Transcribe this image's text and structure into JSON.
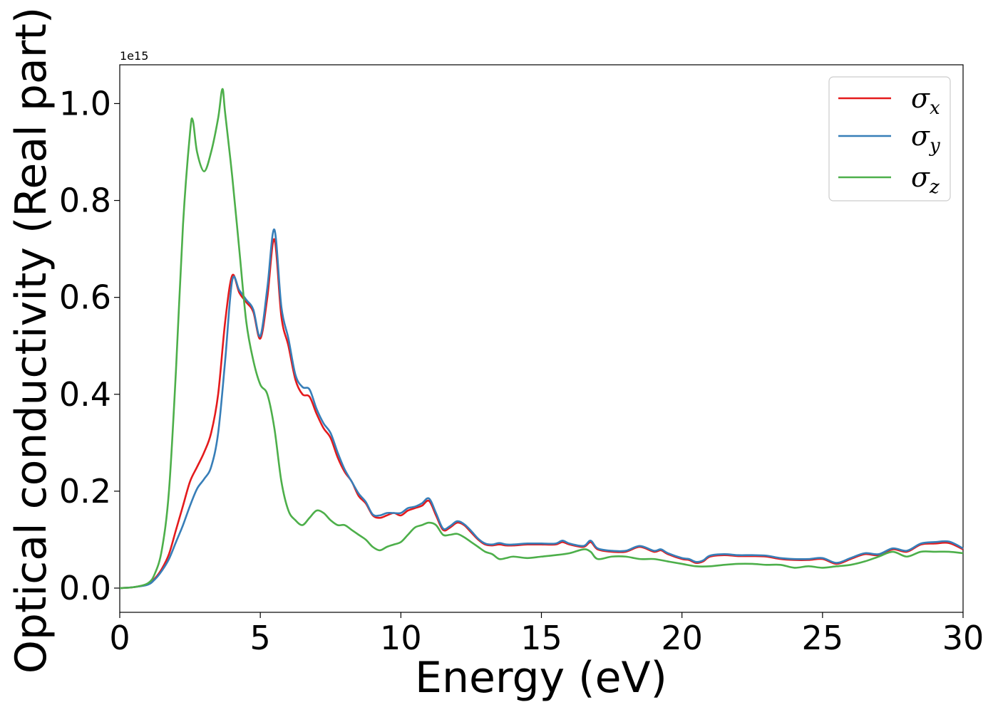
{
  "chart_data": {
    "type": "line",
    "title": "",
    "xlabel": "Energy (eV)",
    "ylabel": "Optical conductivity (Real part)",
    "y_offset_label": "1e15",
    "xlim": [
      0,
      30
    ],
    "ylim": [
      -0.05,
      1.08
    ],
    "xticks": [
      0,
      5,
      10,
      15,
      20,
      25,
      30
    ],
    "xtick_labels": [
      "0",
      "5",
      "10",
      "15",
      "20",
      "25",
      "30"
    ],
    "yticks": [
      0.0,
      0.2,
      0.4,
      0.6,
      0.8,
      1.0
    ],
    "ytick_labels": [
      "0.0",
      "0.2",
      "0.4",
      "0.6",
      "0.8",
      "1.0"
    ],
    "grid": false,
    "legend_position": "top-right",
    "series": [
      {
        "name": "σx",
        "legend_base": "σ",
        "legend_sub": "x",
        "color": "#e41a1c",
        "x": [
          0,
          0.5,
          1,
          1.25,
          1.5,
          1.75,
          2,
          2.25,
          2.5,
          2.75,
          3,
          3.25,
          3.5,
          3.75,
          4,
          4.25,
          4.5,
          4.75,
          5,
          5.25,
          5.5,
          5.75,
          6,
          6.25,
          6.5,
          6.75,
          7,
          7.25,
          7.5,
          7.75,
          8,
          8.25,
          8.5,
          8.75,
          9,
          9.25,
          9.5,
          9.75,
          10,
          10.25,
          10.5,
          10.75,
          11,
          11.25,
          11.5,
          11.75,
          12,
          12.25,
          12.5,
          12.75,
          13,
          13.25,
          13.5,
          13.75,
          14,
          14.5,
          15,
          15.5,
          15.75,
          16,
          16.5,
          16.75,
          17,
          17.5,
          18,
          18.5,
          19,
          19.25,
          19.5,
          20,
          20.25,
          20.5,
          20.75,
          21,
          21.5,
          22,
          22.5,
          23,
          23.5,
          24,
          24.5,
          25,
          25.5,
          26,
          26.5,
          27,
          27.5,
          28,
          28.5,
          29,
          29.5,
          30
        ],
        "y": [
          0,
          0.002,
          0.008,
          0.02,
          0.04,
          0.07,
          0.12,
          0.17,
          0.22,
          0.25,
          0.28,
          0.32,
          0.4,
          0.55,
          0.645,
          0.61,
          0.59,
          0.57,
          0.515,
          0.6,
          0.72,
          0.56,
          0.5,
          0.43,
          0.4,
          0.395,
          0.36,
          0.33,
          0.31,
          0.27,
          0.24,
          0.22,
          0.19,
          0.175,
          0.15,
          0.145,
          0.15,
          0.155,
          0.15,
          0.16,
          0.165,
          0.17,
          0.18,
          0.15,
          0.12,
          0.125,
          0.135,
          0.13,
          0.115,
          0.1,
          0.09,
          0.088,
          0.09,
          0.088,
          0.088,
          0.09,
          0.09,
          0.09,
          0.095,
          0.09,
          0.085,
          0.095,
          0.08,
          0.075,
          0.075,
          0.085,
          0.075,
          0.078,
          0.07,
          0.06,
          0.058,
          0.052,
          0.055,
          0.065,
          0.068,
          0.066,
          0.066,
          0.065,
          0.06,
          0.058,
          0.058,
          0.06,
          0.05,
          0.06,
          0.07,
          0.068,
          0.08,
          0.075,
          0.09,
          0.092,
          0.093,
          0.08
        ]
      },
      {
        "name": "σy",
        "legend_base": "σ",
        "legend_sub": "y",
        "color": "#377eb8",
        "x": [
          0,
          0.5,
          1,
          1.25,
          1.5,
          1.75,
          2,
          2.25,
          2.5,
          2.75,
          3,
          3.25,
          3.5,
          3.75,
          4,
          4.25,
          4.5,
          4.75,
          5,
          5.25,
          5.5,
          5.75,
          6,
          6.25,
          6.5,
          6.75,
          7,
          7.25,
          7.5,
          7.75,
          8,
          8.25,
          8.5,
          8.75,
          9,
          9.25,
          9.5,
          9.75,
          10,
          10.25,
          10.5,
          10.75,
          11,
          11.25,
          11.5,
          11.75,
          12,
          12.25,
          12.5,
          12.75,
          13,
          13.25,
          13.5,
          13.75,
          14,
          14.5,
          15,
          15.5,
          15.75,
          16,
          16.5,
          16.75,
          17,
          17.5,
          18,
          18.5,
          19,
          19.25,
          19.5,
          20,
          20.25,
          20.5,
          20.75,
          21,
          21.5,
          22,
          22.5,
          23,
          23.5,
          24,
          24.5,
          25,
          25.5,
          26,
          26.5,
          27,
          27.5,
          28,
          28.5,
          29,
          29.5,
          30
        ],
        "y": [
          0,
          0.002,
          0.007,
          0.018,
          0.036,
          0.06,
          0.095,
          0.13,
          0.17,
          0.205,
          0.225,
          0.25,
          0.32,
          0.47,
          0.635,
          0.615,
          0.595,
          0.575,
          0.52,
          0.62,
          0.74,
          0.58,
          0.515,
          0.44,
          0.415,
          0.41,
          0.37,
          0.34,
          0.32,
          0.28,
          0.245,
          0.22,
          0.195,
          0.178,
          0.152,
          0.15,
          0.155,
          0.155,
          0.155,
          0.165,
          0.168,
          0.175,
          0.185,
          0.155,
          0.123,
          0.128,
          0.138,
          0.132,
          0.118,
          0.102,
          0.092,
          0.09,
          0.093,
          0.09,
          0.09,
          0.092,
          0.092,
          0.092,
          0.098,
          0.092,
          0.087,
          0.098,
          0.082,
          0.077,
          0.077,
          0.087,
          0.077,
          0.08,
          0.072,
          0.062,
          0.06,
          0.054,
          0.057,
          0.067,
          0.07,
          0.068,
          0.068,
          0.067,
          0.062,
          0.06,
          0.06,
          0.062,
          0.052,
          0.062,
          0.072,
          0.07,
          0.082,
          0.077,
          0.092,
          0.095,
          0.096,
          0.082
        ]
      },
      {
        "name": "σz",
        "legend_base": "σ",
        "legend_sub": "z",
        "color": "#4daf4a",
        "x": [
          0,
          0.5,
          1,
          1.25,
          1.5,
          1.75,
          2,
          2.25,
          2.5,
          2.6,
          2.75,
          3,
          3.25,
          3.5,
          3.65,
          3.75,
          4,
          4.25,
          4.5,
          4.75,
          5,
          5.25,
          5.5,
          5.75,
          6,
          6.25,
          6.5,
          6.75,
          7,
          7.25,
          7.5,
          7.75,
          8,
          8.25,
          8.5,
          8.75,
          9,
          9.25,
          9.5,
          9.75,
          10,
          10.25,
          10.5,
          10.75,
          11,
          11.25,
          11.5,
          11.75,
          12,
          12.25,
          12.5,
          12.75,
          13,
          13.25,
          13.5,
          13.75,
          14,
          14.5,
          15,
          15.5,
          16,
          16.5,
          16.75,
          17,
          17.5,
          18,
          18.5,
          19,
          19.5,
          20,
          20.5,
          21,
          21.5,
          22,
          22.5,
          23,
          23.5,
          24,
          24.5,
          25,
          25.5,
          26,
          26.5,
          27,
          27.5,
          28,
          28.5,
          29,
          29.5,
          30
        ],
        "y": [
          0,
          0.002,
          0.01,
          0.03,
          0.08,
          0.2,
          0.45,
          0.75,
          0.94,
          0.965,
          0.9,
          0.86,
          0.9,
          0.97,
          1.03,
          0.98,
          0.85,
          0.7,
          0.55,
          0.47,
          0.42,
          0.4,
          0.33,
          0.22,
          0.16,
          0.14,
          0.13,
          0.145,
          0.16,
          0.155,
          0.14,
          0.13,
          0.13,
          0.12,
          0.11,
          0.1,
          0.085,
          0.078,
          0.085,
          0.09,
          0.095,
          0.11,
          0.125,
          0.13,
          0.135,
          0.13,
          0.11,
          0.11,
          0.112,
          0.105,
          0.095,
          0.085,
          0.075,
          0.07,
          0.06,
          0.062,
          0.065,
          0.062,
          0.065,
          0.068,
          0.072,
          0.08,
          0.075,
          0.06,
          0.065,
          0.065,
          0.06,
          0.06,
          0.055,
          0.05,
          0.045,
          0.045,
          0.048,
          0.05,
          0.05,
          0.048,
          0.048,
          0.042,
          0.045,
          0.042,
          0.045,
          0.048,
          0.055,
          0.065,
          0.075,
          0.065,
          0.075,
          0.075,
          0.075,
          0.072
        ]
      }
    ]
  }
}
